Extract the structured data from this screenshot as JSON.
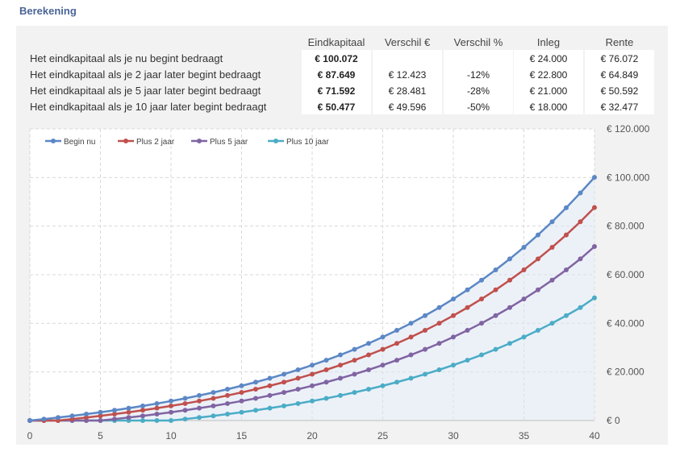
{
  "title": "Berekening",
  "table": {
    "headers": [
      "Eindkapitaal",
      "Verschil €",
      "Verschil %",
      "Inleg",
      "Rente"
    ],
    "rows": [
      {
        "label": "Het eindkapitaal als je nu begint bedraagt",
        "cells": [
          "€ 100.072",
          "",
          "",
          "€ 24.000",
          "€ 76.072"
        ]
      },
      {
        "label": "Het eindkapitaal als je 2 jaar later begint bedraagt",
        "cells": [
          "€ 87.649",
          "€ 12.423",
          "-12%",
          "€ 22.800",
          "€ 64.849"
        ]
      },
      {
        "label": "Het eindkapitaal als je 5 jaar later begint bedraagt",
        "cells": [
          "€ 71.592",
          "€ 28.481",
          "-28%",
          "€ 21.000",
          "€ 50.592"
        ]
      },
      {
        "label": "Het eindkapitaal als je 10 jaar later begint bedraagt",
        "cells": [
          "€ 50.477",
          "€ 49.596",
          "-50%",
          "€ 18.000",
          "€ 32.477"
        ]
      }
    ]
  },
  "chart_data": {
    "type": "line",
    "x": [
      0,
      1,
      2,
      3,
      4,
      5,
      6,
      7,
      8,
      9,
      10,
      11,
      12,
      13,
      14,
      15,
      16,
      17,
      18,
      19,
      20,
      21,
      22,
      23,
      24,
      25,
      26,
      27,
      28,
      29,
      30,
      31,
      32,
      33,
      34,
      35,
      36,
      37,
      38,
      39,
      40
    ],
    "xlim": [
      0,
      40
    ],
    "ylim": [
      0,
      120000
    ],
    "xticks": [
      0,
      5,
      10,
      15,
      20,
      25,
      30,
      35,
      40
    ],
    "yticks": [
      0,
      20000,
      40000,
      60000,
      80000,
      100000,
      120000
    ],
    "ytick_labels": [
      "€ 0",
      "€ 20.000",
      "€ 40.000",
      "€ 60.000",
      "€ 80.000",
      "€ 100.000",
      "€ 120.000"
    ],
    "legend_position": "top-left",
    "grid": true,
    "series": [
      {
        "name": "Begin nu",
        "color": "#5b87c5",
        "values": [
          0,
          600,
          1238,
          1916,
          2636,
          3403,
          4217,
          5082,
          6003,
          6981,
          8021,
          9127,
          10302,
          11550,
          12878,
          14290,
          15790,
          17385,
          19080,
          20882,
          22797,
          24833,
          26998,
          29299,
          31745,
          34345,
          37109,
          40047,
          43170,
          46490,
          50018,
          53769,
          57757,
          61995,
          66501,
          71290,
          76381,
          81794,
          87547,
          93662,
          100072
        ]
      },
      {
        "name": "Plus 2 jaar",
        "color": "#c0504d",
        "values": [
          0,
          0,
          0,
          600,
          1238,
          1916,
          2636,
          3403,
          4217,
          5082,
          6003,
          6981,
          8021,
          9127,
          10302,
          11550,
          12878,
          14290,
          15790,
          17385,
          19080,
          20882,
          22797,
          24833,
          26998,
          29299,
          31745,
          34345,
          37109,
          40047,
          43170,
          46490,
          50018,
          53769,
          57757,
          61995,
          66501,
          71290,
          76381,
          81794,
          87649
        ]
      },
      {
        "name": "Plus 5 jaar",
        "color": "#8064a2",
        "values": [
          0,
          0,
          0,
          0,
          0,
          0,
          600,
          1238,
          1916,
          2636,
          3403,
          4217,
          5082,
          6003,
          6981,
          8021,
          9127,
          10302,
          11550,
          12878,
          14290,
          15790,
          17385,
          19080,
          20882,
          22797,
          24833,
          26998,
          29299,
          31745,
          34345,
          37109,
          40047,
          43170,
          46490,
          50018,
          53769,
          57757,
          61995,
          66501,
          71592
        ]
      },
      {
        "name": "Plus 10 jaar",
        "color": "#4bacc6",
        "values": [
          0,
          0,
          0,
          0,
          0,
          0,
          0,
          0,
          0,
          0,
          0,
          600,
          1238,
          1916,
          2636,
          3403,
          4217,
          5082,
          6003,
          6981,
          8021,
          9127,
          10302,
          11550,
          12878,
          14290,
          15790,
          17385,
          19080,
          20882,
          22797,
          24833,
          26998,
          29299,
          31745,
          34345,
          37109,
          40047,
          43170,
          46490,
          50477
        ]
      }
    ]
  }
}
